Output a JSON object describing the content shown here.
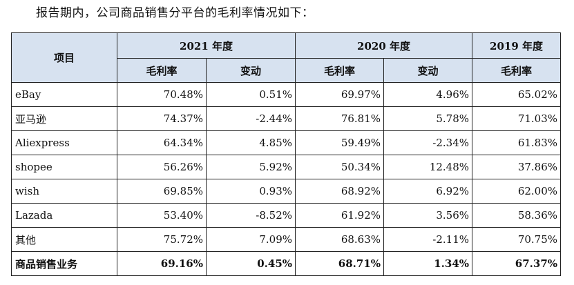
{
  "intro": "报告期内，公司商品销售分平台的毛利率情况如下：",
  "header": {
    "item": "项目",
    "year_2021": "2021 年度",
    "year_2020": "2020 年度",
    "year_2019": "2019 年度",
    "gross_margin": "毛利率",
    "change": "变动"
  },
  "rows": [
    {
      "label": "eBay",
      "gm2021": "70.48%",
      "chg2021": "0.51%",
      "gm2020": "69.97%",
      "chg2020": "4.96%",
      "gm2019": "65.02%"
    },
    {
      "label": "亚马逊",
      "gm2021": "74.37%",
      "chg2021": "-2.44%",
      "gm2020": "76.81%",
      "chg2020": "5.78%",
      "gm2019": "71.03%"
    },
    {
      "label": "Aliexpress",
      "gm2021": "64.34%",
      "chg2021": "4.85%",
      "gm2020": "59.49%",
      "chg2020": "-2.34%",
      "gm2019": "61.83%"
    },
    {
      "label": "shopee",
      "gm2021": "56.26%",
      "chg2021": "5.92%",
      "gm2020": "50.34%",
      "chg2020": "12.48%",
      "gm2019": "37.86%"
    },
    {
      "label": "wish",
      "gm2021": "69.85%",
      "chg2021": "0.93%",
      "gm2020": "68.92%",
      "chg2020": "6.92%",
      "gm2019": "62.00%"
    },
    {
      "label": "Lazada",
      "gm2021": "53.40%",
      "chg2021": "-8.52%",
      "gm2020": "61.92%",
      "chg2020": "3.56%",
      "gm2019": "58.36%"
    },
    {
      "label": "其他",
      "gm2021": "75.72%",
      "chg2021": "7.09%",
      "gm2020": "68.63%",
      "chg2020": "-2.11%",
      "gm2019": "70.75%"
    }
  ],
  "total": {
    "label": "商品销售业务",
    "gm2021": "69.16%",
    "chg2021": "0.45%",
    "gm2020": "68.71%",
    "chg2020": "1.34%",
    "gm2019": "67.37%"
  },
  "colors": {
    "header_background": "#d7e2f0",
    "border": "#222222",
    "text": "#111111"
  }
}
